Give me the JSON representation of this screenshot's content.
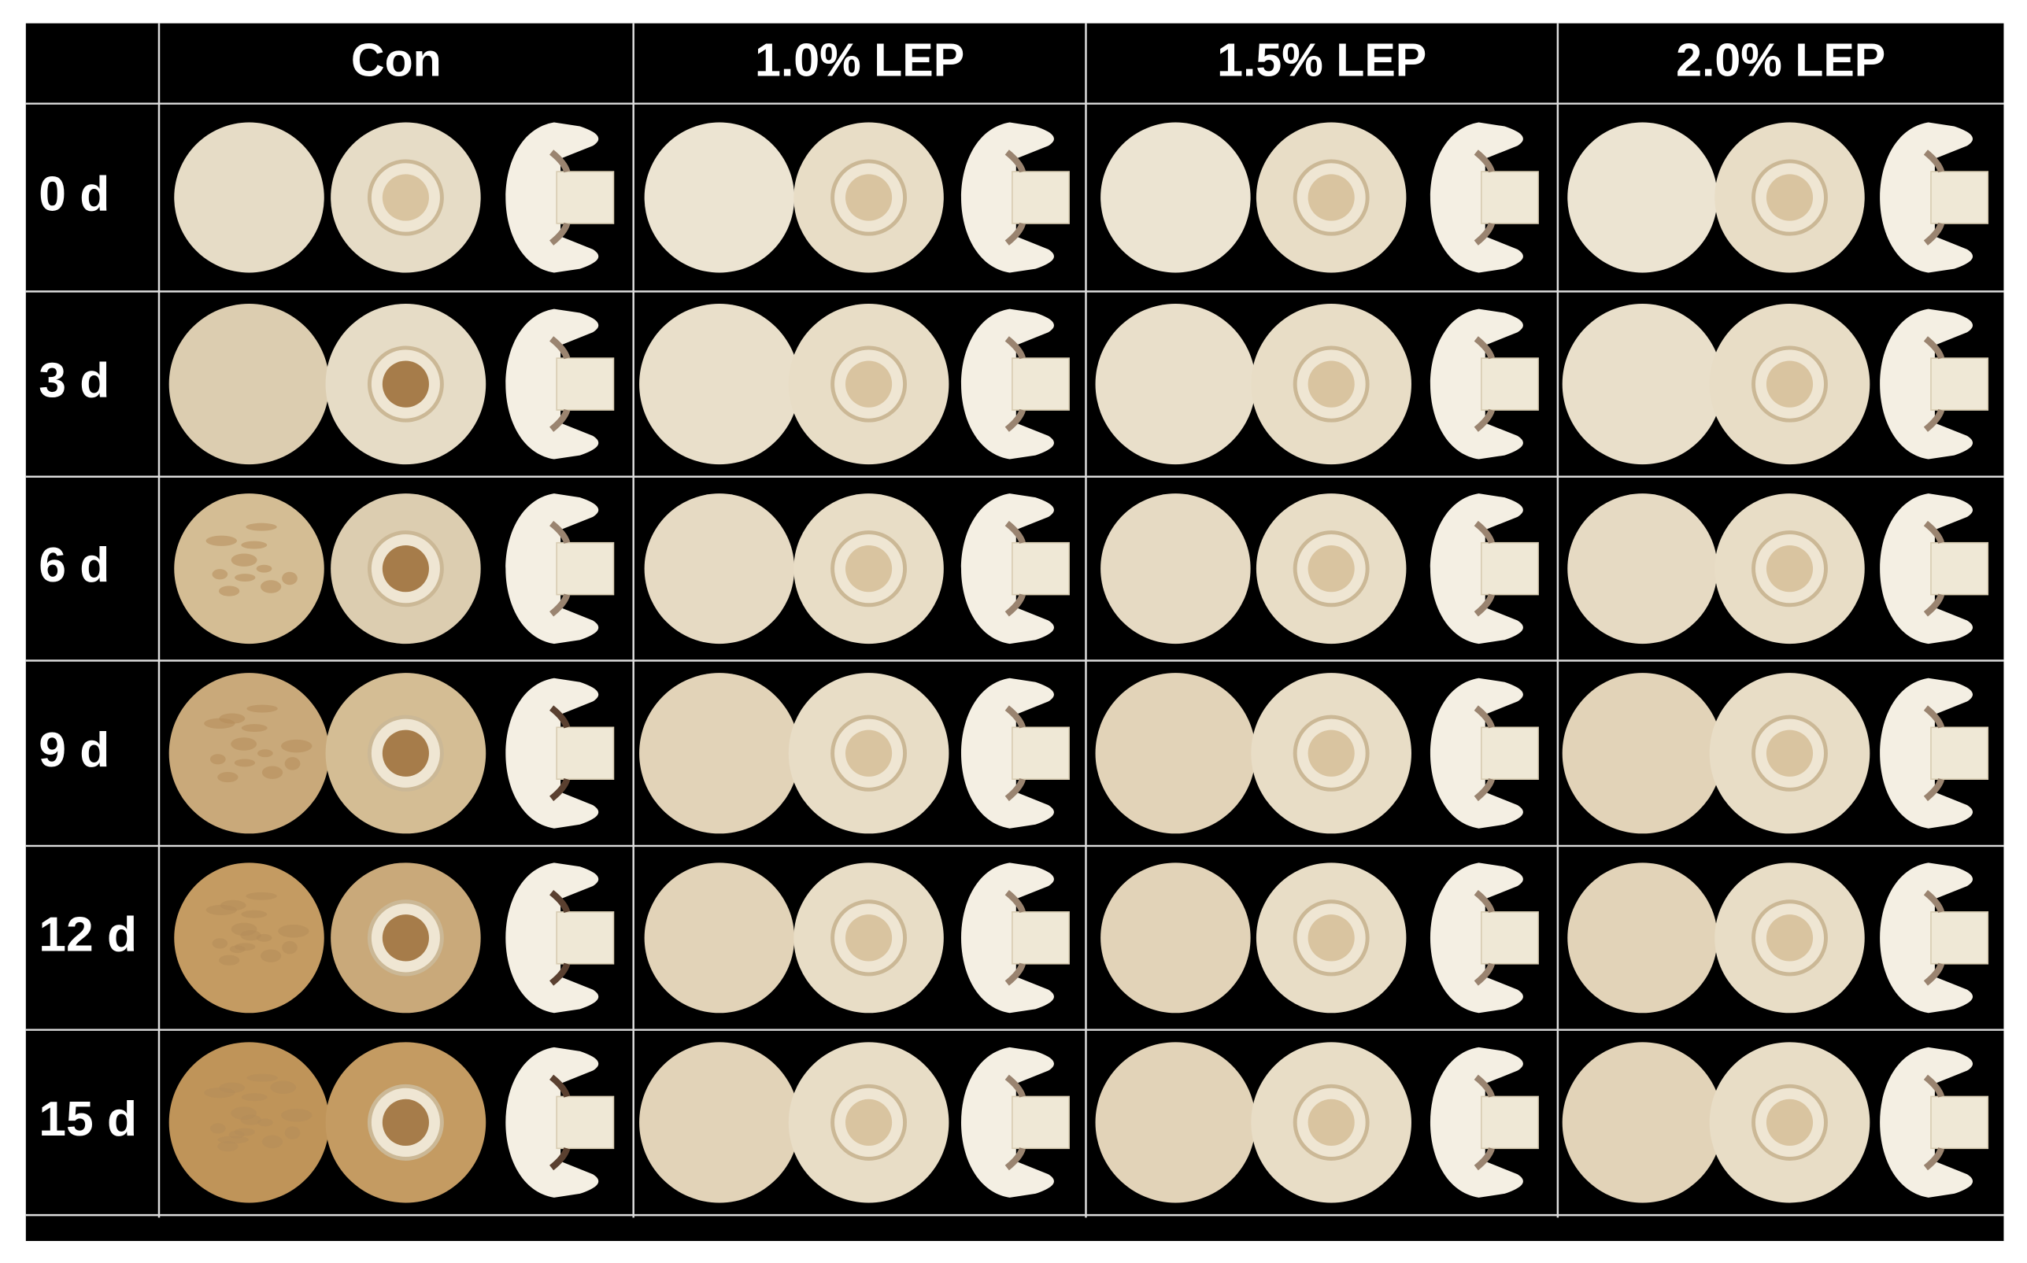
{
  "columns": [
    "Con",
    "1.0% LEP",
    "1.5% LEP",
    "2.0% LEP"
  ],
  "rows": [
    "0 d",
    "3 d",
    "6 d",
    "9 d",
    "12 d",
    "15 d"
  ]
}
